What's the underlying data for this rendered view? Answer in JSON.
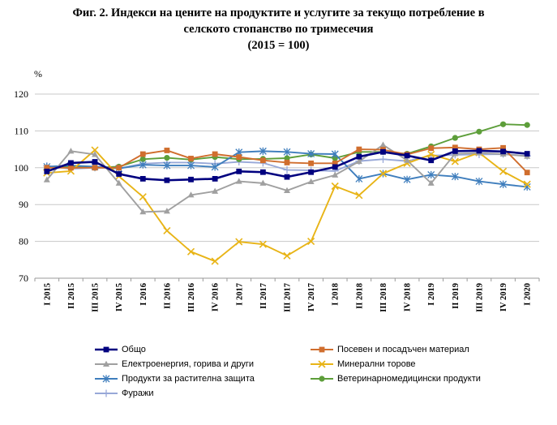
{
  "chart_data": {
    "type": "line",
    "title": [
      "Фиг. 2. Индекси на цените на продуктите и услугите за текущо потребление в",
      "селското стопанство по тримесечия",
      "(2015 = 100)"
    ],
    "ylabel": "%",
    "ylim": [
      70,
      120
    ],
    "yticks": [
      70,
      80,
      90,
      100,
      110,
      120
    ],
    "grid": true,
    "legend_position": "bottom",
    "categories": [
      "I 2015",
      "II 2015",
      "III 2015",
      "IV 2015",
      "I 2016",
      "II 2016",
      "III 2016",
      "IV 2016",
      "I 2017",
      "II 2017",
      "III 2017",
      "IV 2017",
      "I 2018",
      "II 2018",
      "III 2018",
      "IV 2018",
      "I 2019",
      "II 2019",
      "III 2019",
      "IV 2019",
      "I 2020"
    ],
    "series": [
      {
        "name": "Общо",
        "color": "#00007f",
        "marker": "square",
        "values": [
          99.0,
          101.3,
          101.6,
          98.3,
          97.0,
          96.6,
          96.8,
          97.0,
          99.0,
          98.8,
          97.5,
          98.8,
          100.2,
          103.0,
          104.3,
          103.3,
          102.0,
          104.5,
          104.6,
          104.4,
          103.8
        ]
      },
      {
        "name": "Посевен и посадъчен материал",
        "color": "#d06e2e",
        "marker": "square",
        "values": [
          100.0,
          100.0,
          100.0,
          100.0,
          103.7,
          104.7,
          102.5,
          103.7,
          102.9,
          102.0,
          101.4,
          101.2,
          101.2,
          105.0,
          104.9,
          103.6,
          105.3,
          105.5,
          105.0,
          105.4,
          98.7
        ]
      },
      {
        "name": "Електроенергия, горива и други",
        "color": "#a0a0a0",
        "marker": "triangle",
        "values": [
          96.7,
          104.5,
          103.6,
          95.8,
          88.0,
          88.2,
          92.6,
          93.6,
          96.3,
          95.8,
          93.8,
          96.2,
          98.0,
          101.7,
          106.2,
          102.0,
          95.8,
          103.8,
          104.0,
          103.7,
          103.1
        ]
      },
      {
        "name": "Минерални торове",
        "color": "#e8b416",
        "marker": "x",
        "values": [
          98.6,
          99.1,
          104.8,
          97.7,
          92.1,
          82.9,
          77.2,
          74.6,
          79.9,
          79.2,
          76.1,
          80.0,
          95.0,
          92.5,
          98.4,
          101.2,
          103.6,
          101.7,
          104.1,
          99.0,
          95.5
        ]
      },
      {
        "name": "Продукти за растителна защита",
        "color": "#3f7ebd",
        "marker": "star",
        "values": [
          100.3,
          100.6,
          100.3,
          99.8,
          100.8,
          100.6,
          100.6,
          100.2,
          104.2,
          104.5,
          104.3,
          103.8,
          103.7,
          97.0,
          98.4,
          96.8,
          98.1,
          97.6,
          96.3,
          95.5,
          94.8
        ]
      },
      {
        "name": "Ветеринарномедицински продукти",
        "color": "#5d9e3a",
        "marker": "circle",
        "values": [
          100.0,
          100.3,
          100.0,
          100.3,
          102.3,
          102.7,
          102.2,
          102.9,
          102.3,
          102.4,
          102.6,
          103.6,
          102.6,
          104.3,
          104.3,
          103.8,
          105.8,
          108.1,
          109.8,
          111.8,
          111.6
        ]
      },
      {
        "name": "Фуражи",
        "color": "#98a8d8",
        "marker": "plus",
        "values": [
          100.5,
          99.7,
          100.0,
          99.8,
          101.1,
          101.4,
          101.4,
          101.1,
          101.6,
          101.3,
          99.4,
          99.3,
          99.1,
          101.8,
          102.3,
          101.8,
          103.3,
          103.5,
          103.6,
          103.7,
          103.2
        ]
      }
    ]
  }
}
